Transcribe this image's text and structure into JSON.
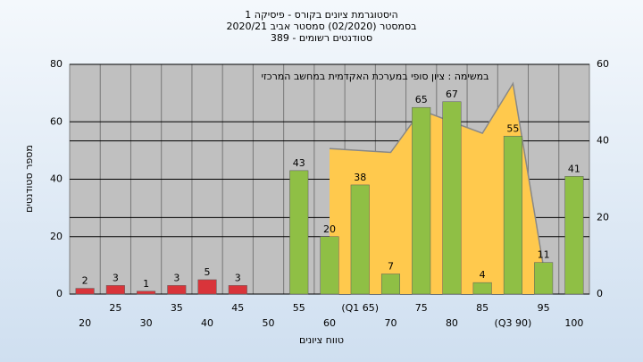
{
  "chart_data": {
    "type": "bar",
    "title": "היסטוגרמת ציונים בקורס - פיסיקה 1",
    "subtitle": "בסמסטר  (02/2020)  סמסטר אביב  2020/21",
    "subtitle2": "סטודנטים רשומים - 389",
    "annotation": "במשימה : ציון סופי במערכת האקדמית במחשב המרכזי",
    "x_label": "טווח ציונים",
    "y_label": "מספר סטודנטים",
    "categories": [
      "20",
      "25",
      "30",
      "35",
      "40",
      "45",
      "50",
      "55",
      "60",
      "(Q1 65)",
      "70",
      "75",
      "80",
      "85",
      "(Q3 90)",
      "95",
      "100"
    ],
    "series": [
      {
        "values": [
          2,
          3,
          1,
          3,
          5,
          3,
          0,
          43,
          20,
          38,
          7,
          65,
          67,
          4,
          55,
          11,
          41
        ],
        "value_labels": [
          "2",
          "3",
          "1",
          "3",
          "5",
          "3",
          null,
          "43",
          "20",
          "38",
          "7",
          "65",
          "67",
          "4",
          "55",
          "11",
          "41"
        ],
        "colors": [
          "#d9343a",
          "#d9343a",
          "#d9343a",
          "#d9343a",
          "#d9343a",
          "#d9343a",
          "#d9343a",
          "#8fbf45",
          "#8fbf45",
          "#8fbf45",
          "#8fbf45",
          "#8fbf45",
          "#8fbf45",
          "#8fbf45",
          "#8fbf45",
          "#8fbf45",
          "#8fbf45"
        ]
      },
      {
        "axis": "y2",
        "color": "#ffc94d",
        "values": [
          null,
          null,
          null,
          null,
          null,
          null,
          null,
          null,
          38,
          37.5,
          37,
          48,
          45,
          42,
          55,
          7,
          null
        ]
      }
    ],
    "ylim": [
      0,
      80
    ],
    "yticks": [
      0,
      20,
      40,
      60,
      80
    ],
    "y2lim": [
      0,
      60
    ],
    "y2ticks": [
      0,
      20,
      40,
      60
    ],
    "grid": true
  }
}
